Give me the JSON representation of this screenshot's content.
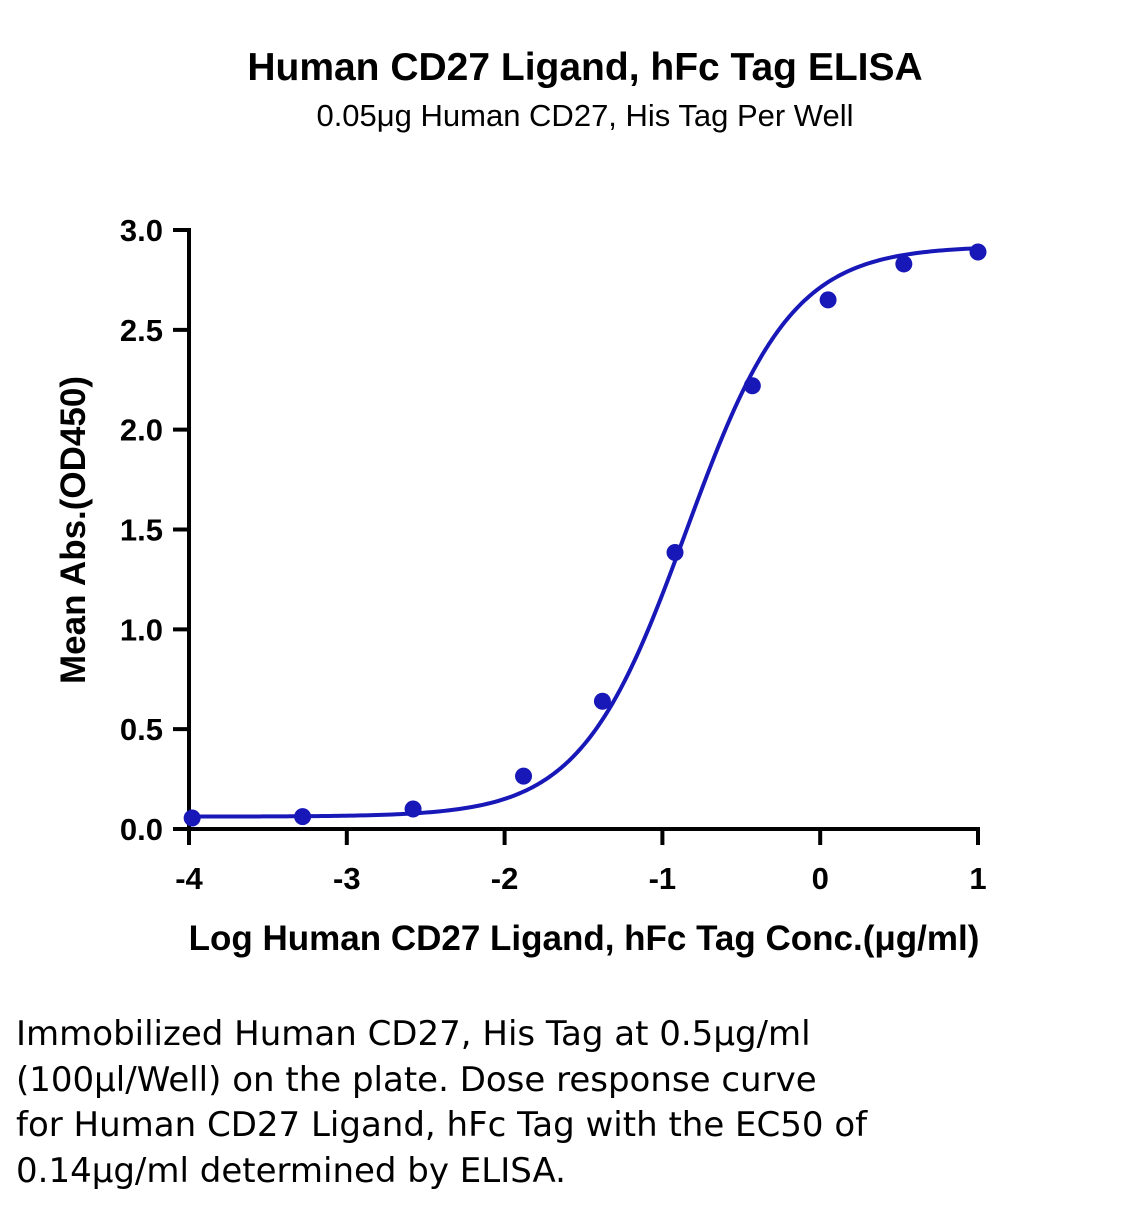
{
  "chart_data": {
    "type": "scatter",
    "title": "Human CD27 Ligand, hFc Tag ELISA",
    "subtitle": "0.05μg Human CD27, His Tag Per Well",
    "xlabel": "Log Human CD27 Ligand, hFc Tag Conc.(μg/ml)",
    "ylabel": "Mean Abs.(OD450)",
    "xlim": [
      -4,
      1
    ],
    "ylim": [
      0,
      3.0
    ],
    "x_ticks": [
      -4,
      -3,
      -2,
      -1,
      0,
      1
    ],
    "x_tick_labels": [
      "-4",
      "-3",
      "-2",
      "-1",
      "0",
      "1"
    ],
    "y_ticks": [
      0.0,
      0.5,
      1.0,
      1.5,
      2.0,
      2.5,
      3.0
    ],
    "y_tick_labels": [
      "0.0",
      "0.5",
      "1.0",
      "1.5",
      "2.0",
      "2.5",
      "3.0"
    ],
    "grid": false,
    "legend": "none",
    "series": [
      {
        "color": "#1818b8",
        "x": [
          -3.98,
          -3.28,
          -2.58,
          -1.88,
          -1.38,
          -0.92,
          -0.43,
          0.05,
          0.53,
          1.0
        ],
        "y": [
          0.055,
          0.062,
          0.1,
          0.265,
          0.64,
          1.385,
          2.22,
          2.65,
          2.83,
          2.89
        ]
      }
    ],
    "fit_curve": {
      "model": "4PL",
      "bottom": 0.062,
      "top": 2.92,
      "logEC50": -0.85,
      "hillslope": 1.3
    }
  },
  "caption": {
    "lines": [
      "Immobilized Human CD27, His Tag at 0.5μg/ml",
      "(100μl/Well) on the plate. Dose response curve",
      "for Human CD27 Ligand, hFc Tag with the EC50 of",
      "0.14μg/ml determined by ELISA."
    ]
  }
}
